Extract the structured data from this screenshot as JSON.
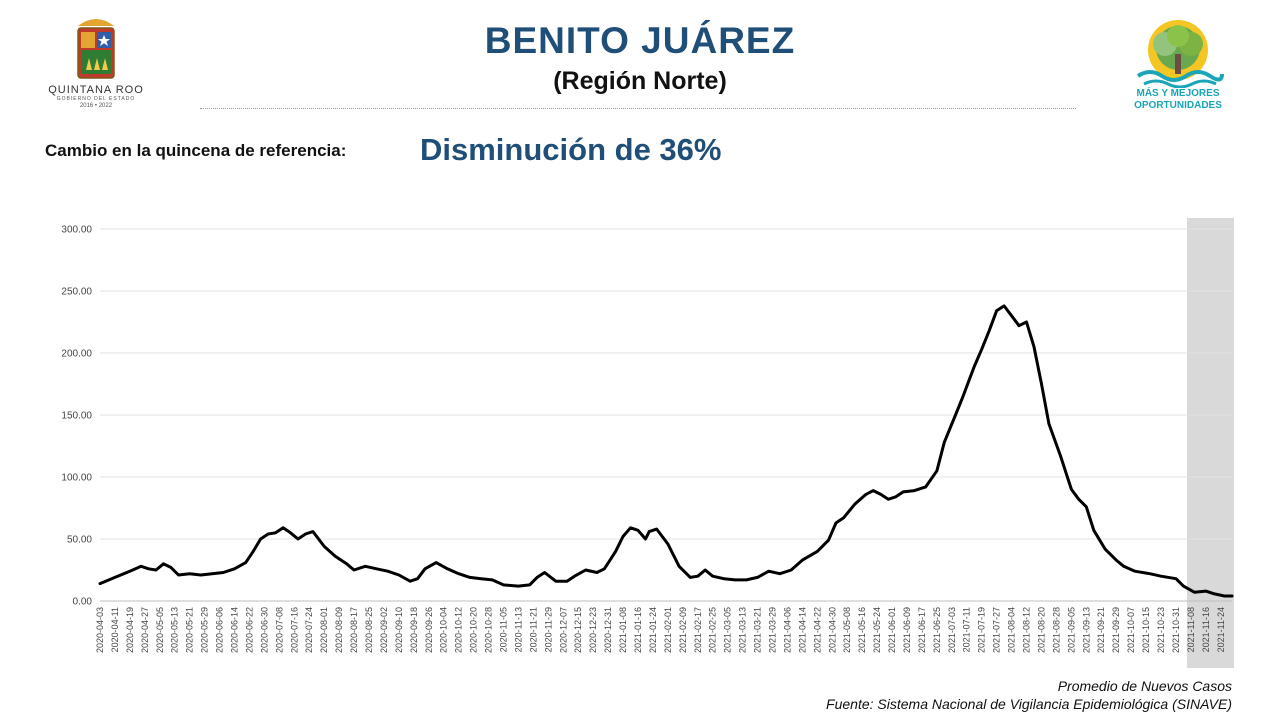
{
  "header": {
    "title": "BENITO JUÁREZ",
    "subtitle": "(Región Norte)",
    "logo_left": {
      "name": "QUINTANA ROO",
      "sub": "GOBIERNO DEL ESTADO",
      "years": "2016 • 2022"
    },
    "logo_right": {
      "line1": "MÁS Y MEJORES",
      "line2": "OPORTUNIDADES"
    }
  },
  "change": {
    "label": "Cambio en la quincena de referencia:",
    "value": "Disminución de 36%"
  },
  "caption": {
    "series": "Promedio de Nuevos Casos",
    "source": "Fuente: Sistema Nacional de Vigilancia Epidemiológica (SINAVE)"
  },
  "colors": {
    "title": "#1f4e79",
    "line": "#000000",
    "shade": "#d9d9d9",
    "logo_right_text": "#1aa5b8"
  },
  "chart_data": {
    "type": "line",
    "ylim": [
      0,
      300
    ],
    "yticks": [
      "300.00",
      "250.00",
      "200.00",
      "150.00",
      "100.00",
      "50.00",
      "0.00"
    ],
    "ytick_values": [
      300,
      250,
      200,
      150,
      100,
      50,
      0
    ],
    "x_range": [
      "2020-04-03",
      "2021-11-30"
    ],
    "xticks": [
      "2020-04-03",
      "2020-04-11",
      "2020-04-19",
      "2020-04-27",
      "2020-05-05",
      "2020-05-13",
      "2020-05-21",
      "2020-05-29",
      "2020-06-06",
      "2020-06-14",
      "2020-06-22",
      "2020-06-30",
      "2020-07-08",
      "2020-07-16",
      "2020-07-24",
      "2020-08-01",
      "2020-08-09",
      "2020-08-17",
      "2020-08-25",
      "2020-09-02",
      "2020-09-10",
      "2020-09-18",
      "2020-09-26",
      "2020-10-04",
      "2020-10-12",
      "2020-10-20",
      "2020-10-28",
      "2020-11-05",
      "2020-11-13",
      "2020-11-21",
      "2020-11-29",
      "2020-12-07",
      "2020-12-15",
      "2020-12-23",
      "2020-12-31",
      "2021-01-08",
      "2021-01-16",
      "2021-01-24",
      "2021-02-01",
      "2021-02-09",
      "2021-02-17",
      "2021-02-25",
      "2021-03-05",
      "2021-03-13",
      "2021-03-21",
      "2021-03-29",
      "2021-04-06",
      "2021-04-14",
      "2021-04-22",
      "2021-04-30",
      "2021-05-08",
      "2021-05-16",
      "2021-05-24",
      "2021-06-01",
      "2021-06-09",
      "2021-06-17",
      "2021-06-25",
      "2021-07-03",
      "2021-07-11",
      "2021-07-19",
      "2021-07-27",
      "2021-08-04",
      "2021-08-12",
      "2021-08-20",
      "2021-08-28",
      "2021-09-05",
      "2021-09-13",
      "2021-09-21",
      "2021-09-29",
      "2021-10-07",
      "2021-10-15",
      "2021-10-23",
      "2021-10-31",
      "2021-11-08",
      "2021-11-16",
      "2021-11-24"
    ],
    "shaded_range": [
      "2021-11-08",
      "2021-11-30"
    ],
    "grid": "horizontal",
    "series": [
      {
        "name": "Promedio de Nuevos Casos",
        "points": [
          [
            "2020-04-03",
            14
          ],
          [
            "2020-04-11",
            19
          ],
          [
            "2020-04-19",
            24
          ],
          [
            "2020-04-25",
            28
          ],
          [
            "2020-04-29",
            26
          ],
          [
            "2020-05-03",
            25
          ],
          [
            "2020-05-07",
            30
          ],
          [
            "2020-05-11",
            27
          ],
          [
            "2020-05-15",
            21
          ],
          [
            "2020-05-21",
            22
          ],
          [
            "2020-05-27",
            21
          ],
          [
            "2020-06-02",
            22
          ],
          [
            "2020-06-08",
            23
          ],
          [
            "2020-06-14",
            26
          ],
          [
            "2020-06-20",
            31
          ],
          [
            "2020-06-24",
            40
          ],
          [
            "2020-06-28",
            50
          ],
          [
            "2020-07-02",
            54
          ],
          [
            "2020-07-06",
            55
          ],
          [
            "2020-07-10",
            59
          ],
          [
            "2020-07-14",
            55
          ],
          [
            "2020-07-18",
            50
          ],
          [
            "2020-07-22",
            54
          ],
          [
            "2020-07-26",
            56
          ],
          [
            "2020-08-01",
            44
          ],
          [
            "2020-08-07",
            36
          ],
          [
            "2020-08-13",
            30
          ],
          [
            "2020-08-17",
            25
          ],
          [
            "2020-08-23",
            28
          ],
          [
            "2020-08-29",
            26
          ],
          [
            "2020-09-04",
            24
          ],
          [
            "2020-09-10",
            21
          ],
          [
            "2020-09-16",
            16
          ],
          [
            "2020-09-20",
            18
          ],
          [
            "2020-09-24",
            26
          ],
          [
            "2020-09-30",
            31
          ],
          [
            "2020-10-06",
            26
          ],
          [
            "2020-10-12",
            22
          ],
          [
            "2020-10-18",
            19
          ],
          [
            "2020-10-24",
            18
          ],
          [
            "2020-10-30",
            17
          ],
          [
            "2020-11-05",
            13
          ],
          [
            "2020-11-13",
            12
          ],
          [
            "2020-11-19",
            13
          ],
          [
            "2020-11-23",
            19
          ],
          [
            "2020-11-27",
            23
          ],
          [
            "2020-12-03",
            16
          ],
          [
            "2020-12-09",
            16
          ],
          [
            "2020-12-13",
            20
          ],
          [
            "2020-12-19",
            25
          ],
          [
            "2020-12-25",
            23
          ],
          [
            "2020-12-29",
            26
          ],
          [
            "2021-01-04",
            40
          ],
          [
            "2021-01-08",
            52
          ],
          [
            "2021-01-12",
            59
          ],
          [
            "2021-01-16",
            57
          ],
          [
            "2021-01-20",
            50
          ],
          [
            "2021-01-22",
            56
          ],
          [
            "2021-01-26",
            58
          ],
          [
            "2021-02-01",
            46
          ],
          [
            "2021-02-07",
            28
          ],
          [
            "2021-02-13",
            19
          ],
          [
            "2021-02-17",
            20
          ],
          [
            "2021-02-21",
            25
          ],
          [
            "2021-02-25",
            20
          ],
          [
            "2021-03-03",
            18
          ],
          [
            "2021-03-09",
            17
          ],
          [
            "2021-03-15",
            17
          ],
          [
            "2021-03-21",
            19
          ],
          [
            "2021-03-27",
            24
          ],
          [
            "2021-04-02",
            22
          ],
          [
            "2021-04-08",
            25
          ],
          [
            "2021-04-14",
            33
          ],
          [
            "2021-04-22",
            40
          ],
          [
            "2021-04-28",
            49
          ],
          [
            "2021-05-02",
            63
          ],
          [
            "2021-05-06",
            67
          ],
          [
            "2021-05-12",
            78
          ],
          [
            "2021-05-18",
            86
          ],
          [
            "2021-05-22",
            89
          ],
          [
            "2021-05-26",
            86
          ],
          [
            "2021-05-30",
            82
          ],
          [
            "2021-06-03",
            84
          ],
          [
            "2021-06-07",
            88
          ],
          [
            "2021-06-13",
            89
          ],
          [
            "2021-06-19",
            92
          ],
          [
            "2021-06-25",
            105
          ],
          [
            "2021-06-29",
            128
          ],
          [
            "2021-07-05",
            150
          ],
          [
            "2021-07-09",
            165
          ],
          [
            "2021-07-15",
            189
          ],
          [
            "2021-07-19",
            203
          ],
          [
            "2021-07-23",
            218
          ],
          [
            "2021-07-27",
            234
          ],
          [
            "2021-07-31",
            238
          ],
          [
            "2021-08-04",
            230
          ],
          [
            "2021-08-08",
            222
          ],
          [
            "2021-08-12",
            225
          ],
          [
            "2021-08-16",
            205
          ],
          [
            "2021-08-20",
            175
          ],
          [
            "2021-08-24",
            143
          ],
          [
            "2021-08-30",
            118
          ],
          [
            "2021-09-05",
            90
          ],
          [
            "2021-09-09",
            82
          ],
          [
            "2021-09-13",
            76
          ],
          [
            "2021-09-17",
            57
          ],
          [
            "2021-09-23",
            42
          ],
          [
            "2021-09-29",
            33
          ],
          [
            "2021-10-03",
            28
          ],
          [
            "2021-10-09",
            24
          ],
          [
            "2021-10-17",
            22
          ],
          [
            "2021-10-23",
            20
          ],
          [
            "2021-10-31",
            18
          ],
          [
            "2021-11-04",
            12
          ],
          [
            "2021-11-10",
            7
          ],
          [
            "2021-11-16",
            8
          ],
          [
            "2021-11-20",
            6
          ],
          [
            "2021-11-26",
            4
          ],
          [
            "2021-11-30",
            4
          ]
        ]
      }
    ]
  }
}
